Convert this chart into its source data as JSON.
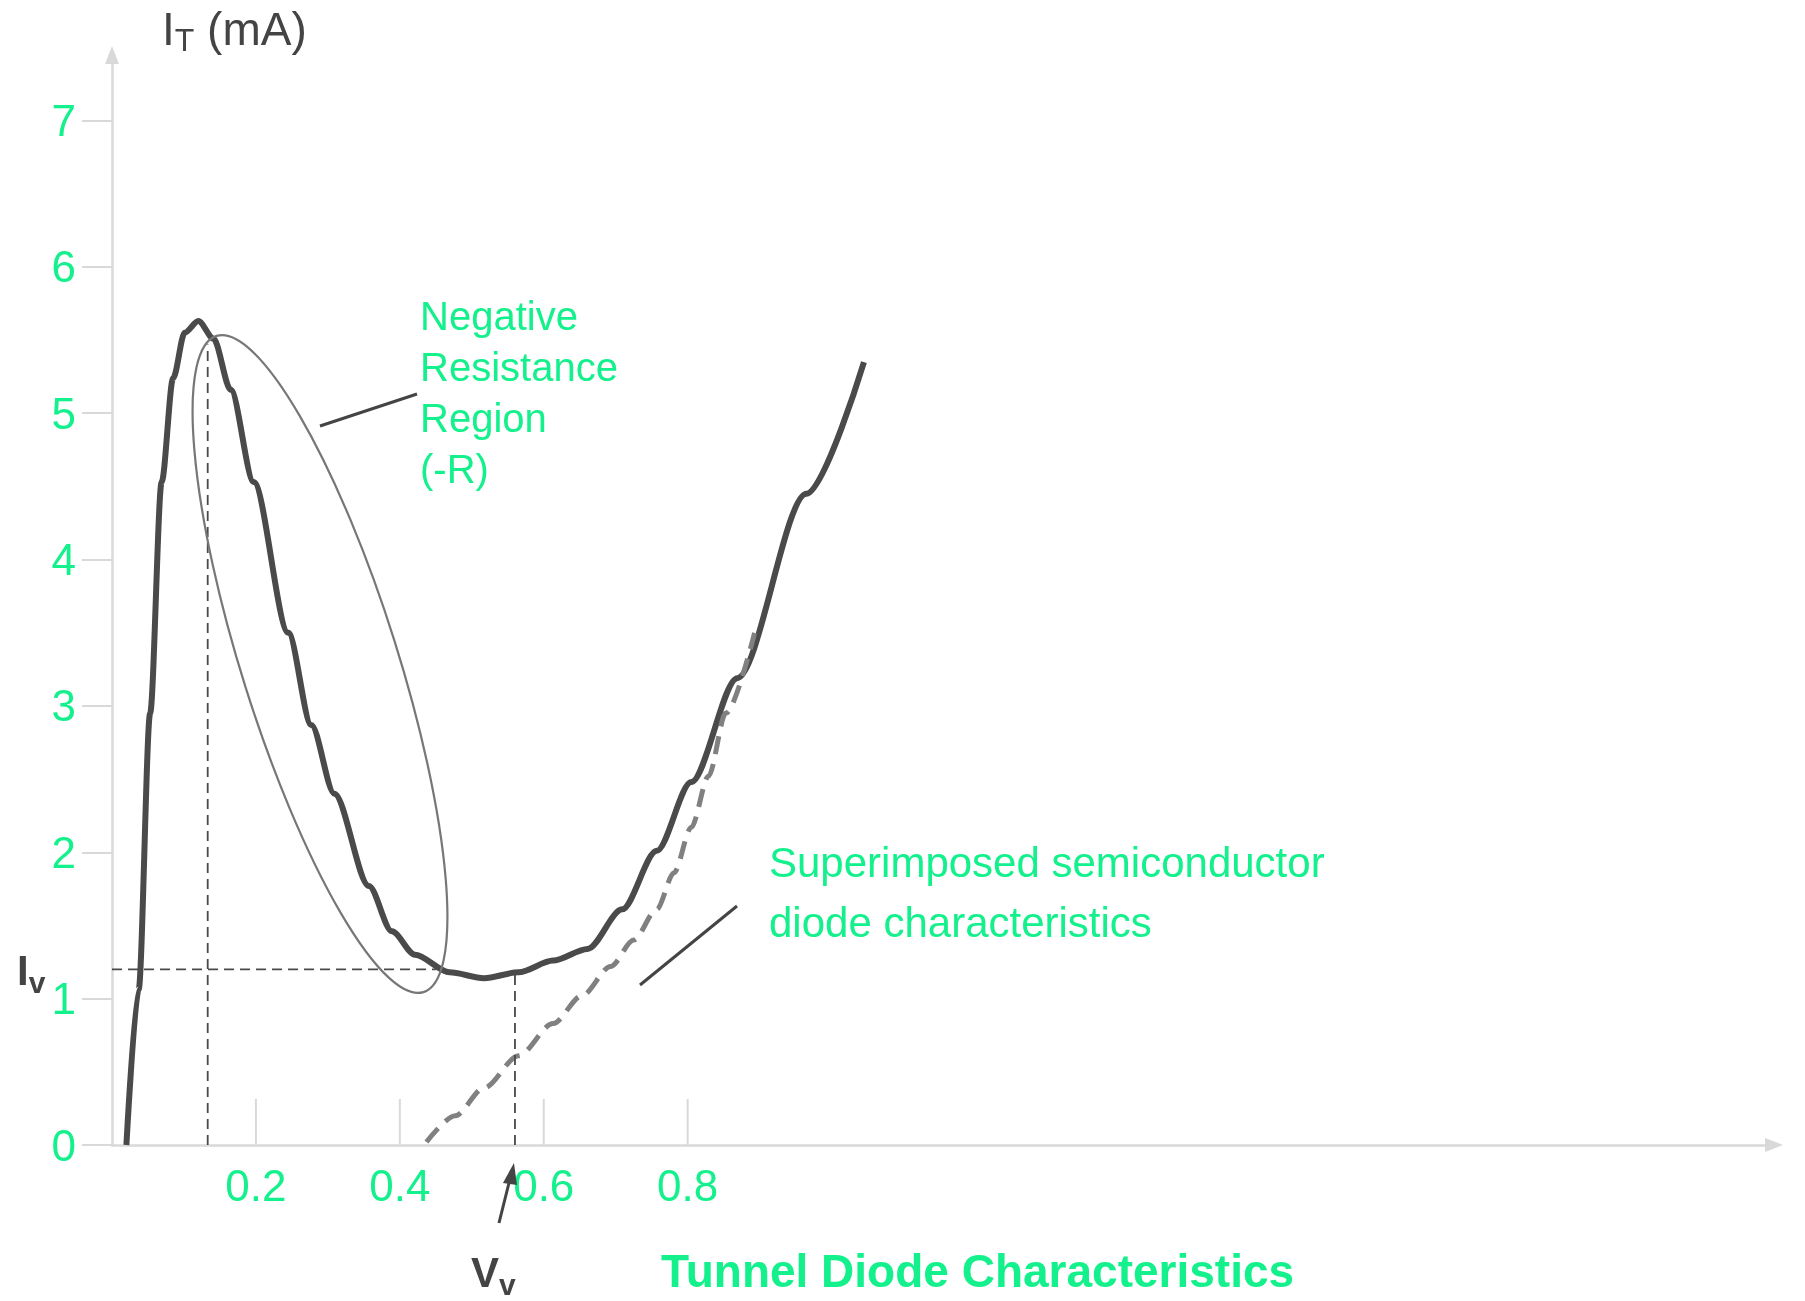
{
  "chart_data": {
    "type": "line",
    "title": "Tunnel Diode Characteristics",
    "ylabel": "I$_{T}$ (mA)",
    "xlim": [
      0,
      2.3
    ],
    "ylim": [
      0,
      7.4
    ],
    "xticks": [
      0.2,
      0.4,
      0.6,
      0.8
    ],
    "yticks": [
      0,
      1,
      2,
      3,
      4,
      5,
      6,
      7
    ],
    "grid": false,
    "marker": "none",
    "series": [
      {
        "color": "#4a4a4a",
        "line_style": "solid",
        "x": [
          0.02,
          0.037,
          0.053,
          0.069,
          0.085,
          0.101,
          0.12,
          0.141,
          0.165,
          0.197,
          0.245,
          0.277,
          0.309,
          0.357,
          0.389,
          0.421,
          0.469,
          0.517,
          0.565,
          0.613,
          0.661,
          0.709,
          0.757,
          0.805,
          0.869,
          0.965,
          1.045
        ],
        "values": [
          0,
          1.06,
          2.95,
          4.53,
          5.24,
          5.55,
          5.63,
          5.51,
          5.16,
          4.53,
          3.5,
          2.87,
          2.4,
          1.77,
          1.46,
          1.3,
          1.18,
          1.14,
          1.18,
          1.26,
          1.34,
          1.61,
          2.01,
          2.48,
          3.19,
          4.45,
          5.35
        ]
      },
      {
        "color": "#808080",
        "line_style": "dashed",
        "x": [
          0.437,
          0.477,
          0.517,
          0.565,
          0.613,
          0.653,
          0.693,
          0.725,
          0.757,
          0.781,
          0.805,
          0.829,
          0.853,
          0.893
        ],
        "values": [
          0.02,
          0.2,
          0.39,
          0.61,
          0.83,
          1.02,
          1.22,
          1.4,
          1.61,
          1.86,
          2.17,
          2.52,
          2.95,
          3.5
        ]
      },
      {
        "color": "#4a4a4a",
        "line_style": "dashed",
        "x": [
          0,
          0.45
        ],
        "values": [
          1.2,
          1.2
        ]
      },
      {
        "color": "#4a4a4a",
        "line_style": "dashed",
        "x": [
          0.56,
          0.56
        ],
        "values": [
          0,
          1.18
        ]
      },
      {
        "color": "#4a4a4a",
        "line_style": "dashed",
        "x": [
          0.133,
          0.133
        ],
        "values": [
          0,
          5.47
        ]
      }
    ],
    "annotations": [
      "Negative\nResistance\nRegion\n(-R)",
      "Superimposed semiconductor\ndiode characteristics",
      {
        "text": "I$_{v}$",
        "x": 0,
        "y": 1.2
      },
      {
        "text": "V$_{v}$",
        "x": 0.56,
        "y": 0
      }
    ]
  }
}
